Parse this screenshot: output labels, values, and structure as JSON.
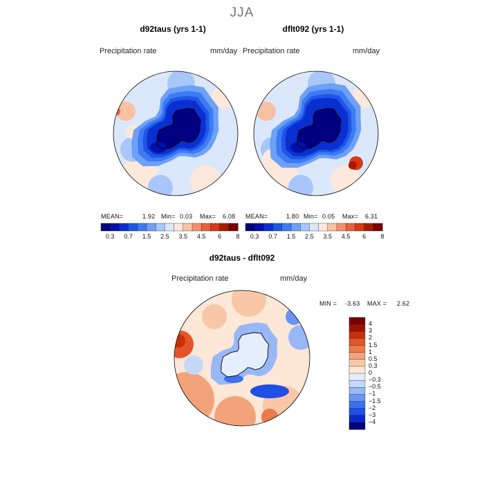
{
  "figure": {
    "season": "JJA",
    "colors": {
      "abs_scale": [
        "#000080",
        "#0010a8",
        "#0a2fd0",
        "#1f55e8",
        "#3c7bf2",
        "#6da0f7",
        "#a8c6f9",
        "#dbe8fb",
        "#fde8dc",
        "#f8c1a3",
        "#f1916c",
        "#e8613d",
        "#d53a15",
        "#a81900",
        "#780000"
      ],
      "diff_scale": [
        "#000080",
        "#0a28c8",
        "#1f4fe6",
        "#3c70ee",
        "#6a95f4",
        "#98b7f7",
        "#c6d8fa",
        "#e4eefc",
        "#fde7d6",
        "#f8c8a6",
        "#f3a37a",
        "#ec7a4c",
        "#e4552a",
        "#c8300a",
        "#a01000",
        "#7a0000"
      ],
      "background": "#ffffff",
      "coast": "#000000"
    }
  },
  "chart_data": [
    {
      "type": "heatmap",
      "projection": "south-polar-stereographic",
      "title": "d92taus (yrs 1-1)",
      "field_label": "Precipitation rate",
      "units": "mm/day",
      "stats": {
        "mean_label": "MEAN=",
        "mean": "1.92",
        "min_label": "Min=",
        "min": "0.03",
        "max_label": "Max=",
        "max": "6.08"
      },
      "colorbar_ticks": [
        "0.3",
        "0.7",
        "1.5",
        "2.5",
        "3.5",
        "4.5",
        "6",
        "8"
      ]
    },
    {
      "type": "heatmap",
      "projection": "south-polar-stereographic",
      "title": "dflt092 (yrs 1-1)",
      "field_label": "Precipitation rate",
      "units": "mm/day",
      "stats": {
        "mean_label": "MEAN=",
        "mean": "1.80",
        "min_label": "Min=",
        "min": "0.05",
        "max_label": "Max=",
        "max": "6.31"
      },
      "colorbar_ticks": [
        "0.3",
        "0.7",
        "1.5",
        "2.5",
        "3.5",
        "4.5",
        "6",
        "8"
      ]
    },
    {
      "type": "heatmap",
      "projection": "south-polar-stereographic",
      "title": "d92taus - dflt092",
      "field_label": "Precipitation rate",
      "units": "mm/day",
      "stats": {
        "min_label": "MIN =",
        "min": "-3.63",
        "max_label": "MAX =",
        "max": "2.62"
      },
      "colorbar_ticks": [
        "4",
        "3",
        "2",
        "1.5",
        "1",
        "0.5",
        "0.3",
        "0",
        "−0.3",
        "−0.5",
        "−1",
        "−1.5",
        "−2",
        "−3",
        "−4"
      ]
    }
  ]
}
